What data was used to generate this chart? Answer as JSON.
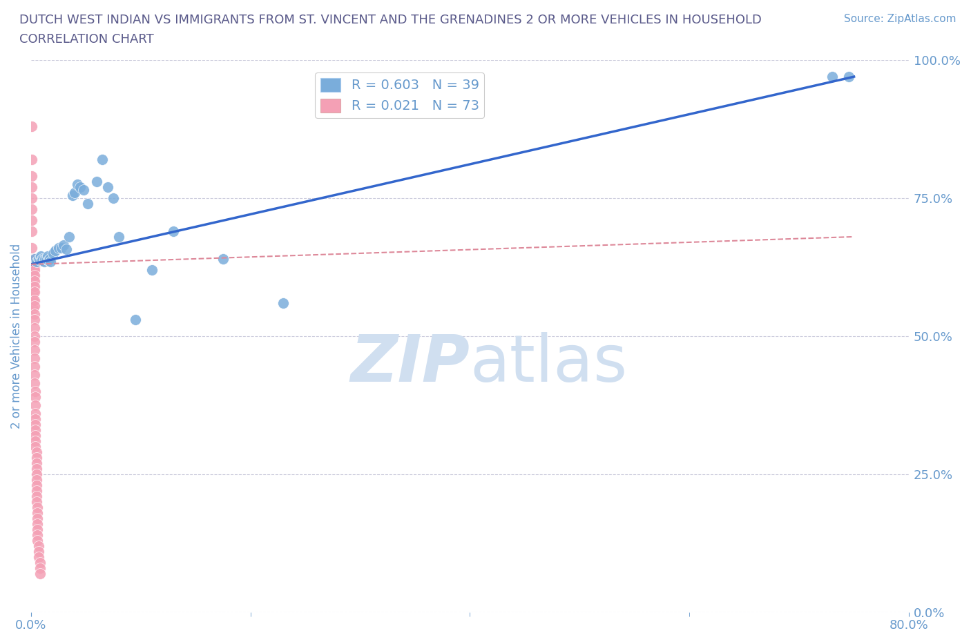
{
  "title_line1": "DUTCH WEST INDIAN VS IMMIGRANTS FROM ST. VINCENT AND THE GRENADINES 2 OR MORE VEHICLES IN HOUSEHOLD",
  "title_line2": "CORRELATION CHART",
  "source_text": "Source: ZipAtlas.com",
  "ylabel": "2 or more Vehicles in Household",
  "xlim": [
    0,
    0.8
  ],
  "ylim": [
    0,
    1.0
  ],
  "ytick_labels": [
    "0.0%",
    "25.0%",
    "50.0%",
    "75.0%",
    "100.0%"
  ],
  "ytick_positions": [
    0.0,
    0.25,
    0.5,
    0.75,
    1.0
  ],
  "title_color": "#5a5a8a",
  "axis_color": "#6699cc",
  "grid_color": "#ccccdd",
  "watermark_color": "#d0dff0",
  "blue_R": 0.603,
  "blue_N": 39,
  "pink_R": 0.021,
  "pink_N": 73,
  "blue_color": "#7aaddb",
  "pink_color": "#f4a0b5",
  "blue_line_color": "#3366cc",
  "pink_line_color": "#dd8899",
  "blue_scatter_x": [
    0.003,
    0.005,
    0.007,
    0.008,
    0.009,
    0.01,
    0.01,
    0.012,
    0.013,
    0.014,
    0.015,
    0.016,
    0.017,
    0.018,
    0.02,
    0.022,
    0.025,
    0.028,
    0.03,
    0.032,
    0.035,
    0.038,
    0.04,
    0.042,
    0.045,
    0.048,
    0.052,
    0.06,
    0.065,
    0.07,
    0.075,
    0.08,
    0.095,
    0.11,
    0.13,
    0.175,
    0.23,
    0.73,
    0.745
  ],
  "blue_scatter_y": [
    0.64,
    0.635,
    0.64,
    0.638,
    0.645,
    0.64,
    0.638,
    0.635,
    0.64,
    0.64,
    0.645,
    0.638,
    0.64,
    0.635,
    0.65,
    0.655,
    0.66,
    0.66,
    0.665,
    0.658,
    0.68,
    0.755,
    0.76,
    0.775,
    0.77,
    0.765,
    0.74,
    0.78,
    0.82,
    0.77,
    0.75,
    0.68,
    0.53,
    0.62,
    0.69,
    0.64,
    0.56,
    0.97,
    0.97
  ],
  "pink_scatter_x": [
    0.001,
    0.001,
    0.001,
    0.001,
    0.001,
    0.001,
    0.001,
    0.001,
    0.001,
    0.001,
    0.002,
    0.002,
    0.002,
    0.002,
    0.002,
    0.002,
    0.002,
    0.002,
    0.002,
    0.002,
    0.003,
    0.003,
    0.003,
    0.003,
    0.003,
    0.003,
    0.003,
    0.003,
    0.003,
    0.003,
    0.003,
    0.003,
    0.003,
    0.003,
    0.003,
    0.003,
    0.003,
    0.003,
    0.003,
    0.003,
    0.004,
    0.004,
    0.004,
    0.004,
    0.004,
    0.004,
    0.004,
    0.004,
    0.004,
    0.004,
    0.005,
    0.005,
    0.005,
    0.005,
    0.005,
    0.005,
    0.005,
    0.005,
    0.005,
    0.005,
    0.006,
    0.006,
    0.006,
    0.006,
    0.006,
    0.006,
    0.006,
    0.007,
    0.007,
    0.007,
    0.008,
    0.008,
    0.008
  ],
  "pink_scatter_y": [
    0.88,
    0.82,
    0.79,
    0.77,
    0.75,
    0.73,
    0.71,
    0.69,
    0.66,
    0.63,
    0.64,
    0.63,
    0.62,
    0.615,
    0.61,
    0.6,
    0.59,
    0.58,
    0.565,
    0.55,
    0.64,
    0.63,
    0.625,
    0.62,
    0.61,
    0.6,
    0.59,
    0.58,
    0.565,
    0.555,
    0.54,
    0.53,
    0.515,
    0.5,
    0.49,
    0.475,
    0.46,
    0.445,
    0.43,
    0.415,
    0.4,
    0.39,
    0.375,
    0.36,
    0.35,
    0.34,
    0.33,
    0.32,
    0.31,
    0.3,
    0.29,
    0.28,
    0.27,
    0.26,
    0.25,
    0.24,
    0.23,
    0.22,
    0.21,
    0.2,
    0.19,
    0.18,
    0.17,
    0.16,
    0.15,
    0.14,
    0.13,
    0.12,
    0.11,
    0.1,
    0.09,
    0.08,
    0.07
  ]
}
